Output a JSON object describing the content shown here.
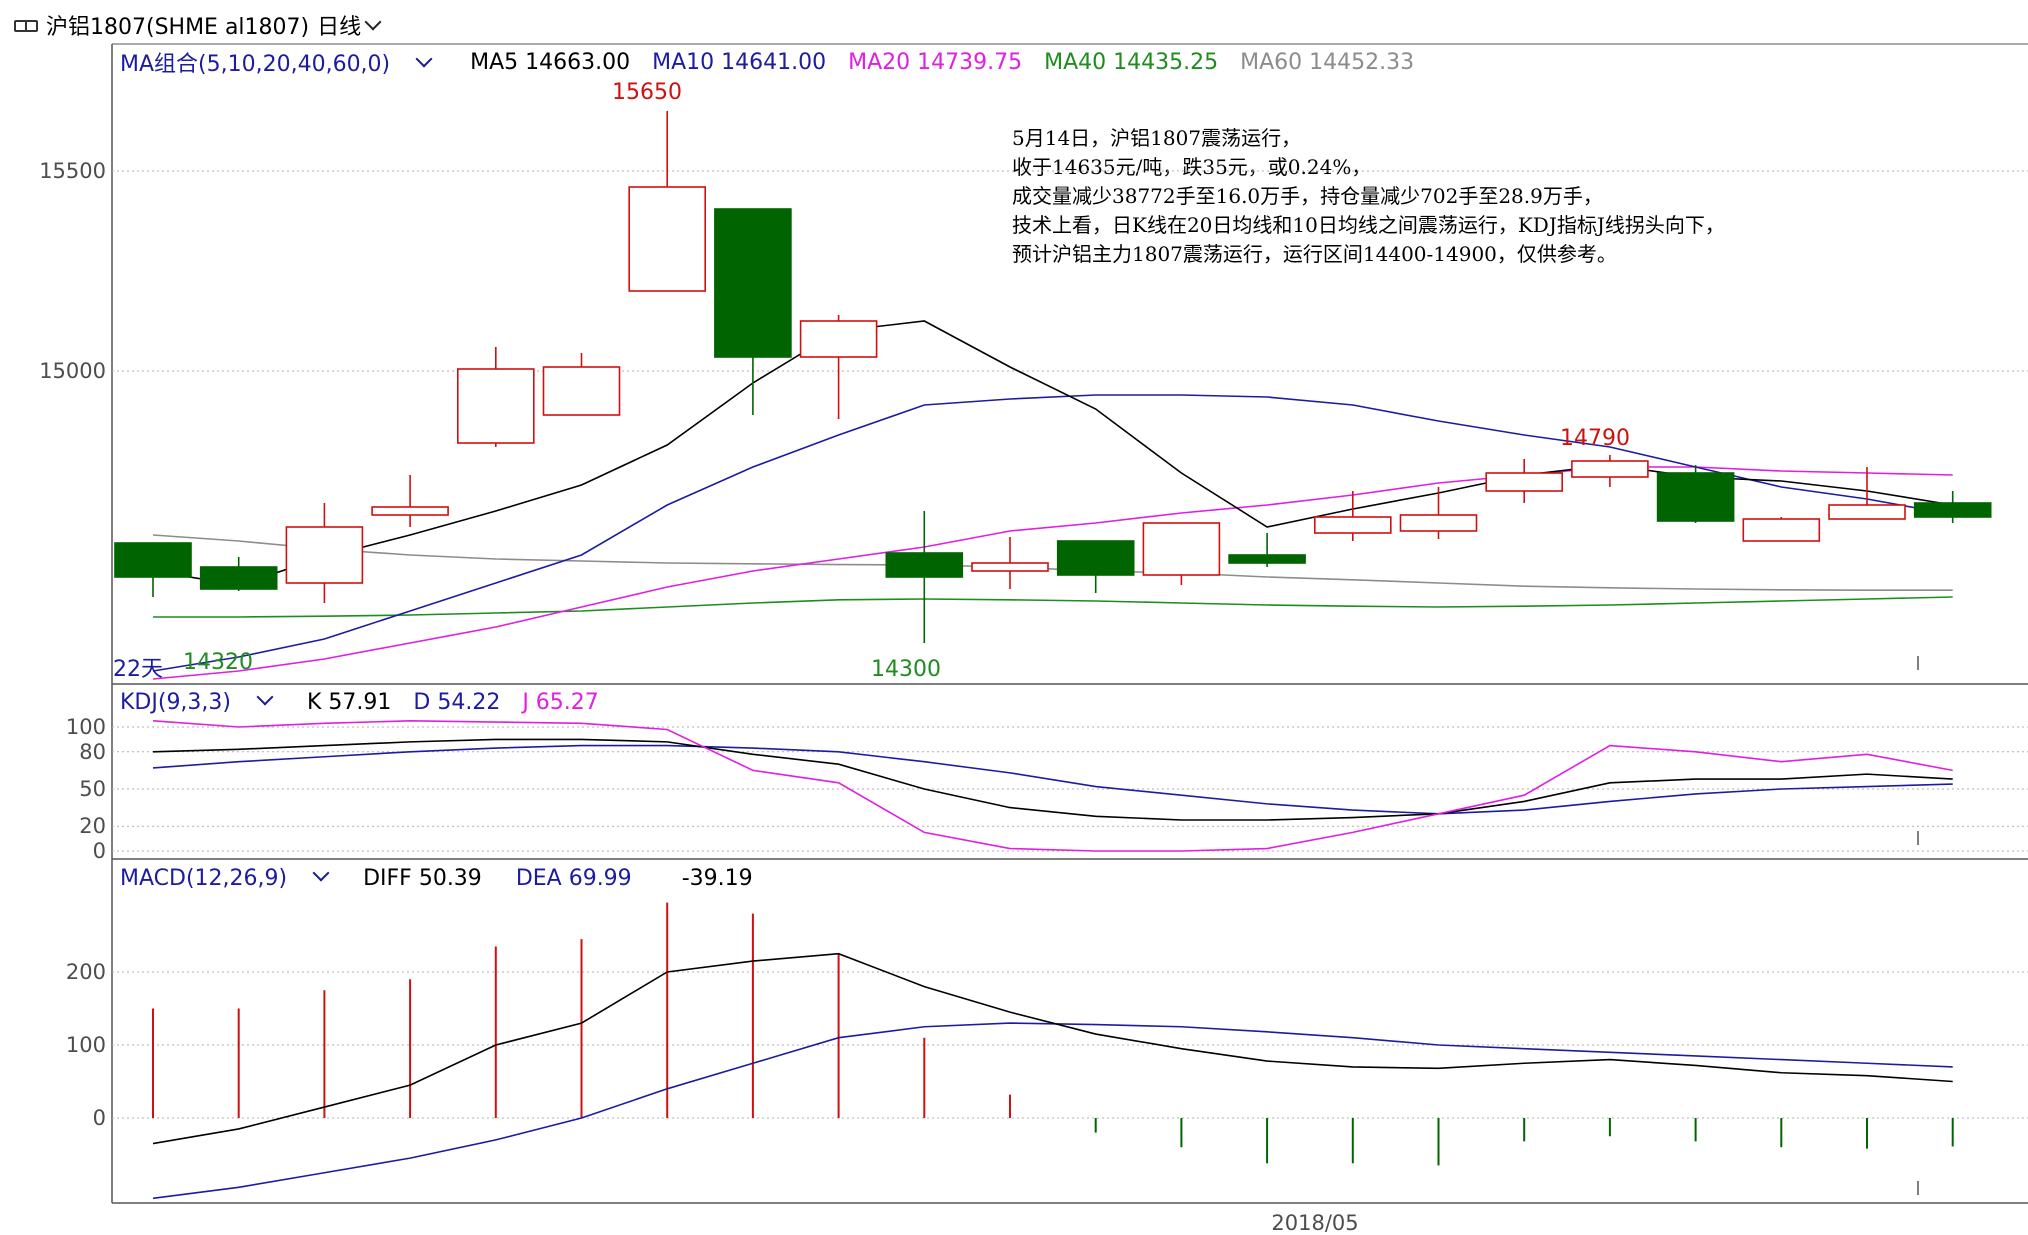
{
  "header": {
    "symbol": "沪铝1807(SHME al1807)",
    "period": "日线"
  },
  "colors": {
    "ma5": "#000000",
    "ma10": "#1c1ca0",
    "ma20": "#e11ee1",
    "ma40": "#1e8c1e",
    "ma60": "#8c8c8c",
    "up": "#d01010",
    "down": "#006400",
    "label_blue": "#1c1ca0"
  },
  "ma_legend": {
    "label": "MA组合(5,10,20,40,60,0)",
    "ma5": "MA5 14663.00",
    "ma10": "MA10 14641.00",
    "ma20": "MA20 14739.75",
    "ma40": "MA40 14435.25",
    "ma60": "MA60 14452.33"
  },
  "kdj_legend": {
    "label": "KDJ(9,3,3)",
    "k": "K  57.91",
    "d": "D  54.22",
    "j": "J  65.27"
  },
  "macd_legend": {
    "label": "MACD(12,26,9)",
    "diff": "DIFF  50.39",
    "dea": "DEA  69.99",
    "macd": "-39.19"
  },
  "annotations": {
    "high_label": "15650",
    "recent_high_label": "14790",
    "low_label_1": "14320",
    "low_label_2": "14300",
    "days_label": "22天"
  },
  "note": "5月14日，沪铝1807震荡运行，\n收于14635元/吨，跌35元，或0.24%，\n成交量减少38772手至16.0万手，持仓量减少702手至28.9万手，\n技术上看，日K线在20日均线和10日均线之间震荡运行，KDJ指标J线拐头向下，\n预计沪铝主力1807震荡运行，运行区间14400-14900，仅供参考。",
  "x_axis_label": "2018/05",
  "chart_data": [
    {
      "type": "candlestick",
      "title": "",
      "y_ticks": [
        15000,
        15500
      ],
      "candles": [
        {
          "o": 14570,
          "h": 14570,
          "l": 14435,
          "c": 14485
        },
        {
          "o": 14510,
          "h": 14535,
          "l": 14450,
          "c": 14455
        },
        {
          "o": 14470,
          "h": 14670,
          "l": 14420,
          "c": 14610
        },
        {
          "o": 14640,
          "h": 14740,
          "l": 14610,
          "c": 14660
        },
        {
          "o": 14820,
          "h": 15060,
          "l": 14810,
          "c": 15005
        },
        {
          "o": 14890,
          "h": 15045,
          "l": 14890,
          "c": 15010
        },
        {
          "o": 15200,
          "h": 15650,
          "l": 15200,
          "c": 15460
        },
        {
          "o": 15405,
          "h": 15405,
          "l": 14890,
          "c": 15035
        },
        {
          "o": 15035,
          "h": 15140,
          "l": 14880,
          "c": 15125
        },
        {
          "o": 14545,
          "h": 14650,
          "l": 14320,
          "c": 14485
        },
        {
          "o": 14500,
          "h": 14585,
          "l": 14455,
          "c": 14520
        },
        {
          "o": 14575,
          "h": 14575,
          "l": 14445,
          "c": 14490
        },
        {
          "o": 14490,
          "h": 14620,
          "l": 14465,
          "c": 14620
        },
        {
          "o": 14540,
          "h": 14595,
          "l": 14510,
          "c": 14520
        },
        {
          "o": 14595,
          "h": 14700,
          "l": 14575,
          "c": 14635
        },
        {
          "o": 14600,
          "h": 14710,
          "l": 14580,
          "c": 14640
        },
        {
          "o": 14700,
          "h": 14780,
          "l": 14670,
          "c": 14745
        },
        {
          "o": 14735,
          "h": 14790,
          "l": 14710,
          "c": 14775
        },
        {
          "o": 14745,
          "h": 14765,
          "l": 14620,
          "c": 14625
        },
        {
          "o": 14575,
          "h": 14635,
          "l": 14575,
          "c": 14630
        },
        {
          "o": 14630,
          "h": 14760,
          "l": 14630,
          "c": 14665
        },
        {
          "o": 14670,
          "h": 14700,
          "l": 14620,
          "c": 14635
        }
      ],
      "ma5": [
        14500,
        14465,
        14535,
        14590,
        14650,
        14715,
        14815,
        14970,
        15100,
        15125,
        15010,
        14905,
        14745,
        14610,
        14655,
        14695,
        14740,
        14765,
        14735,
        14725,
        14700,
        14665
      ],
      "ma10": [
        14250,
        14285,
        14330,
        14400,
        14470,
        14540,
        14665,
        14760,
        14840,
        14915,
        14930,
        14940,
        14940,
        14935,
        14915,
        14875,
        14840,
        14810,
        14760,
        14710,
        14680,
        14641
      ],
      "ma20": [
        14230,
        14250,
        14280,
        14320,
        14360,
        14410,
        14460,
        14500,
        14530,
        14560,
        14600,
        14620,
        14645,
        14665,
        14690,
        14720,
        14740,
        14760,
        14760,
        14750,
        14745,
        14740
      ],
      "ma40": [
        14385,
        14385,
        14387,
        14390,
        14395,
        14400,
        14410,
        14420,
        14428,
        14430,
        14428,
        14425,
        14420,
        14415,
        14412,
        14410,
        14412,
        14415,
        14420,
        14425,
        14430,
        14435
      ],
      "ma60": [
        14590,
        14575,
        14555,
        14540,
        14530,
        14525,
        14520,
        14518,
        14516,
        14515,
        14510,
        14500,
        14495,
        14485,
        14478,
        14470,
        14462,
        14458,
        14455,
        14453,
        14452,
        14452
      ]
    },
    {
      "type": "line",
      "title": "KDJ",
      "y_ticks": [
        0,
        20,
        50,
        80,
        100
      ],
      "k": [
        80,
        82,
        85,
        88,
        90,
        90,
        88,
        78,
        70,
        50,
        35,
        28,
        25,
        25,
        27,
        30,
        40,
        55,
        58,
        58,
        62,
        58
      ],
      "d": [
        67,
        72,
        76,
        80,
        83,
        85,
        85,
        83,
        80,
        72,
        63,
        52,
        45,
        38,
        33,
        30,
        33,
        40,
        46,
        50,
        52,
        54
      ],
      "j": [
        105,
        100,
        103,
        105,
        104,
        103,
        98,
        65,
        55,
        15,
        2,
        0,
        0,
        2,
        15,
        30,
        45,
        85,
        80,
        72,
        78,
        65
      ]
    },
    {
      "type": "bar",
      "title": "MACD",
      "y_ticks": [
        0,
        100,
        200
      ],
      "diff": [
        -35,
        -15,
        15,
        45,
        100,
        130,
        200,
        215,
        225,
        180,
        145,
        115,
        95,
        78,
        70,
        68,
        75,
        80,
        72,
        62,
        58,
        50
      ],
      "dea": [
        -110,
        -95,
        -75,
        -55,
        -30,
        0,
        40,
        75,
        110,
        125,
        130,
        128,
        125,
        118,
        110,
        100,
        95,
        90,
        85,
        80,
        75,
        70
      ],
      "macd": [
        150,
        150,
        175,
        190,
        235,
        245,
        295,
        280,
        225,
        110,
        32,
        -20,
        -40,
        -62,
        -62,
        -65,
        -32,
        -25,
        -32,
        -40,
        -42,
        -39
      ]
    }
  ]
}
